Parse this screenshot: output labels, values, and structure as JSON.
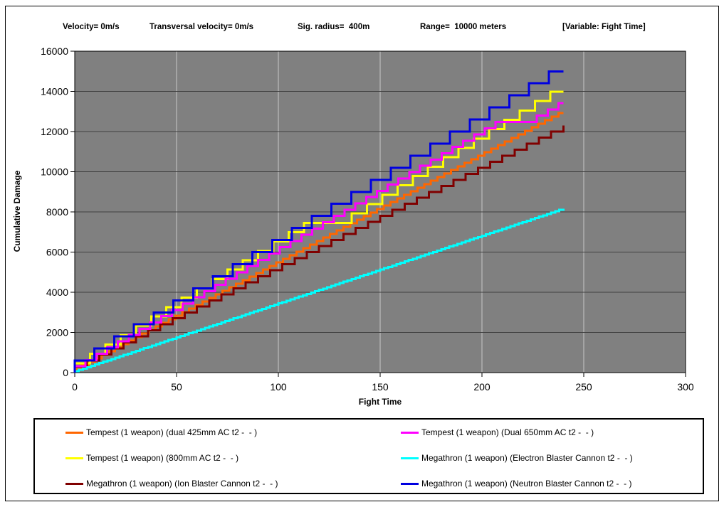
{
  "header": {
    "items": [
      "Velocity= 0m/s",
      "Transversal velocity= 0m/s",
      "Sig. radius=  400m",
      "Range=  10000 meters",
      "[Variable: Fight Time]"
    ]
  },
  "chart_data": {
    "type": "line",
    "subtype": "stepped-cumulative",
    "title": "",
    "xlabel": "Fight Time",
    "ylabel": "Cumulative Damage",
    "xlim": [
      0,
      300
    ],
    "ylim": [
      0,
      16000
    ],
    "x_ticks": [
      0,
      50,
      100,
      150,
      200,
      250,
      300
    ],
    "y_ticks": [
      0,
      2000,
      4000,
      6000,
      8000,
      10000,
      12000,
      14000,
      16000
    ],
    "plot_bg": "#808080",
    "grid": {
      "horizontal_color": "#404040",
      "vertical_color": "#C8C8C8"
    },
    "axis_color": "#000000",
    "data_end_time_s": 240,
    "series": [
      {
        "name": "Tempest (1 weapon) (dual 425mm AC t2 -  - )",
        "color": "#FF6600",
        "shot_damage": 177,
        "cycle_s": 3.3,
        "pauses": [],
        "t_end": 240,
        "end_value": 12900
      },
      {
        "name": "Tempest (1 weapon) (800mm AC t2 -  - )",
        "color": "#FFFF00",
        "shot_damage": 466,
        "cycle_s": 7.5,
        "pauses": [
          [
            116,
            16
          ]
        ],
        "t_end": 240,
        "end_value": 14000
      },
      {
        "name": "Megathron (1 weapon) (Ion Blaster Cannon t2 -  - )",
        "color": "#800000",
        "shot_damage": 300,
        "cycle_s": 6.0,
        "pauses": [],
        "t_end": 240,
        "end_value": 12300
      },
      {
        "name": "Megathron (1 weapon) (Electron Blaster Cannon t2 -  - )",
        "color": "#00FFFF",
        "shot_damage": 67.5,
        "cycle_s": 2.0,
        "pauses": [],
        "t_end": 240,
        "end_value": 8150
      },
      {
        "name": "Tempest (1 weapon) (Dual 650mm AC t2 -  - )",
        "color": "#FF00FF",
        "shot_damage": 312,
        "cycle_s": 5.3,
        "pauses": [
          [
            211,
            15
          ]
        ],
        "t_end": 240,
        "end_value": 13400
      },
      {
        "name": "Megathron (1 weapon) (Neutron Blaster Cannon t2 -  - )",
        "color": "#0000E0",
        "shot_damage": 600,
        "cycle_s": 9.7,
        "pauses": [],
        "t_end": 240,
        "end_value": 15000
      }
    ],
    "legend": {
      "columns": 2,
      "order": [
        0,
        4,
        1,
        3,
        2,
        5
      ],
      "position": "bottom"
    }
  }
}
